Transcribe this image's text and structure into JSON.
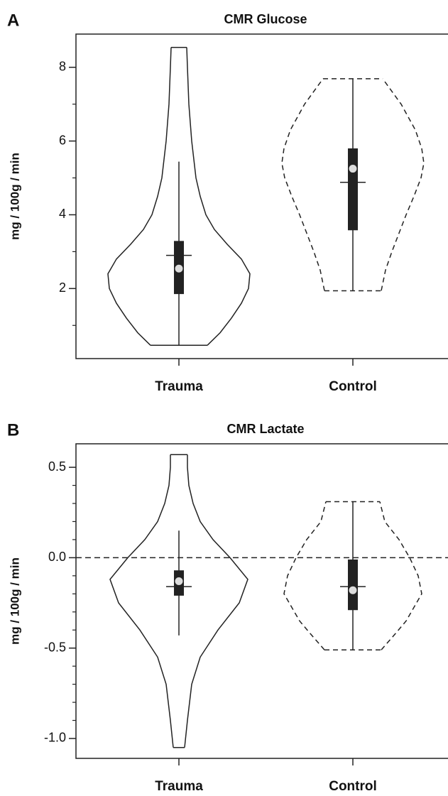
{
  "chart_data": [
    {
      "type": "violin",
      "panel": "A",
      "title": "CMR Glucose",
      "ylabel": "mg / 100g / min",
      "categories": [
        "Trauma",
        "Control"
      ],
      "ylim": [
        0.1,
        8.9
      ],
      "yticks": [
        2,
        4,
        6,
        8
      ],
      "minor_yticks": [
        1,
        3,
        5,
        7
      ],
      "series": [
        {
          "name": "Trauma",
          "dashed": false,
          "min": 0.46,
          "q1": 1.85,
          "median": 2.54,
          "mean": 2.9,
          "q3": 3.29,
          "max": 5.44,
          "profile_y": [
            0.46,
            0.8,
            1.2,
            1.6,
            2.0,
            2.4,
            2.8,
            3.2,
            3.6,
            4.0,
            4.5,
            5.0,
            6.0,
            7.0,
            8.0,
            8.54
          ],
          "density": [
            0.4,
            0.58,
            0.74,
            0.88,
            0.98,
            1.0,
            0.88,
            0.68,
            0.5,
            0.38,
            0.3,
            0.24,
            0.18,
            0.14,
            0.12,
            0.11
          ]
        },
        {
          "name": "Control",
          "dashed": true,
          "min": 1.94,
          "q1": 3.58,
          "median": 5.25,
          "mean": 4.88,
          "q3": 5.8,
          "max": 7.69,
          "profile_y": [
            1.94,
            2.5,
            3.0,
            3.5,
            4.0,
            4.5,
            5.0,
            5.4,
            5.8,
            6.3,
            7.0,
            7.69
          ],
          "density": [
            0.4,
            0.46,
            0.55,
            0.65,
            0.75,
            0.86,
            0.96,
            1.0,
            0.97,
            0.88,
            0.68,
            0.42
          ]
        }
      ]
    },
    {
      "type": "violin",
      "panel": "B",
      "title": "CMR Lactate",
      "ylabel": "mg / 100g / min",
      "categories": [
        "Trauma",
        "Control"
      ],
      "ylim": [
        -1.11,
        0.63
      ],
      "yticks": [
        {
          "value": -1.0,
          "label": "-1.0"
        },
        {
          "value": -0.5,
          "label": "-0.5"
        },
        {
          "value": 0.0,
          "label": "0.0"
        },
        {
          "value": 0.5,
          "label": "0.5"
        }
      ],
      "minor_yticks": [
        -0.9,
        -0.8,
        -0.7,
        -0.6,
        -0.4,
        -0.3,
        -0.2,
        -0.1,
        0.1,
        0.2,
        0.3,
        0.4
      ],
      "hline": 0,
      "series": [
        {
          "name": "Trauma",
          "dashed": false,
          "min": -0.43,
          "q1": -0.21,
          "median": -0.13,
          "mean": -0.16,
          "q3": -0.07,
          "max": 0.15,
          "profile_y": [
            -1.05,
            -0.9,
            -0.7,
            -0.55,
            -0.4,
            -0.25,
            -0.12,
            0.0,
            0.1,
            0.2,
            0.3,
            0.4,
            0.5,
            0.57
          ],
          "density": [
            0.08,
            0.12,
            0.18,
            0.3,
            0.55,
            0.85,
            0.97,
            0.72,
            0.48,
            0.3,
            0.2,
            0.14,
            0.12,
            0.12
          ]
        },
        {
          "name": "Control",
          "dashed": true,
          "min": -0.51,
          "q1": -0.29,
          "median": -0.18,
          "mean": -0.16,
          "q3": -0.01,
          "max": 0.31,
          "profile_y": [
            -0.51,
            -0.42,
            -0.35,
            -0.2,
            -0.1,
            0.0,
            0.1,
            0.2,
            0.31
          ],
          "density": [
            0.4,
            0.6,
            0.75,
            0.97,
            0.92,
            0.8,
            0.65,
            0.45,
            0.38
          ]
        }
      ]
    }
  ]
}
